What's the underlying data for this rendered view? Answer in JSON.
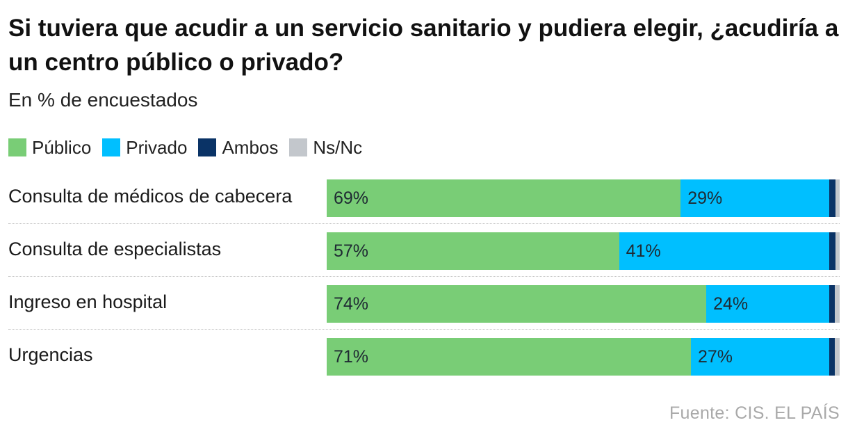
{
  "chart_data": {
    "type": "bar",
    "orientation": "horizontal",
    "stacked": true,
    "title": "Si tuviera que acudir a un servicio sanitario y pudiera elegir, ¿acudiría a un centro público o privado?",
    "subtitle": "En % de encuestados",
    "categories": [
      "Consulta de médicos de cabecera",
      "Consulta de especialistas",
      "Ingreso en hospital",
      "Urgencias"
    ],
    "series": [
      {
        "name": "Público",
        "color": "#79cd76",
        "values": [
          69,
          57,
          74,
          71
        ],
        "labels": [
          "69%",
          "57%",
          "74%",
          "71%"
        ]
      },
      {
        "name": "Privado",
        "color": "#00bfff",
        "values": [
          29,
          41,
          24,
          27
        ],
        "labels": [
          "29%",
          "41%",
          "24%",
          "27%"
        ]
      },
      {
        "name": "Ambos",
        "color": "#0a3366",
        "values": [
          1.2,
          1.2,
          1.0,
          1.0
        ]
      },
      {
        "name": "Ns/Nc",
        "color": "#c3c7cc",
        "values": [
          0.8,
          0.8,
          1.0,
          1.0
        ]
      }
    ],
    "xlim": [
      0,
      100
    ],
    "legend_position": "top-left",
    "grid": false,
    "source": "Fuente: CIS. EL PAÍS"
  }
}
